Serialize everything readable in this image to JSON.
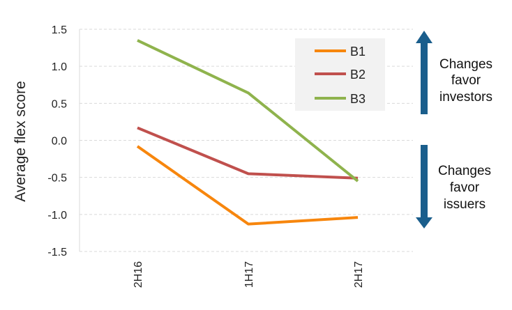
{
  "chart_data": {
    "type": "line",
    "categories": [
      "2H16",
      "1H17",
      "2H17"
    ],
    "series": [
      {
        "name": "B1",
        "values": [
          -0.08,
          -1.13,
          -1.04
        ],
        "color": "#f7860d"
      },
      {
        "name": "B2",
        "values": [
          0.17,
          -0.45,
          -0.51
        ],
        "color": "#c0504d"
      },
      {
        "name": "B3",
        "values": [
          1.35,
          0.64,
          -0.55
        ],
        "color": "#8fb34d"
      }
    ],
    "ylabel": "Average flex score",
    "ylim": [
      -1.5,
      1.5
    ],
    "yticks": [
      "1.5",
      "1.0",
      "0.5",
      "0.0",
      "-0.5",
      "-1.0",
      "-1.5"
    ],
    "grid": true,
    "legend": "top-right",
    "annotations": {
      "up": [
        "Changes",
        "favor",
        "investors"
      ],
      "down": [
        "Changes",
        "favor",
        "issuers"
      ]
    },
    "arrow_color": "#1a5e8c"
  }
}
